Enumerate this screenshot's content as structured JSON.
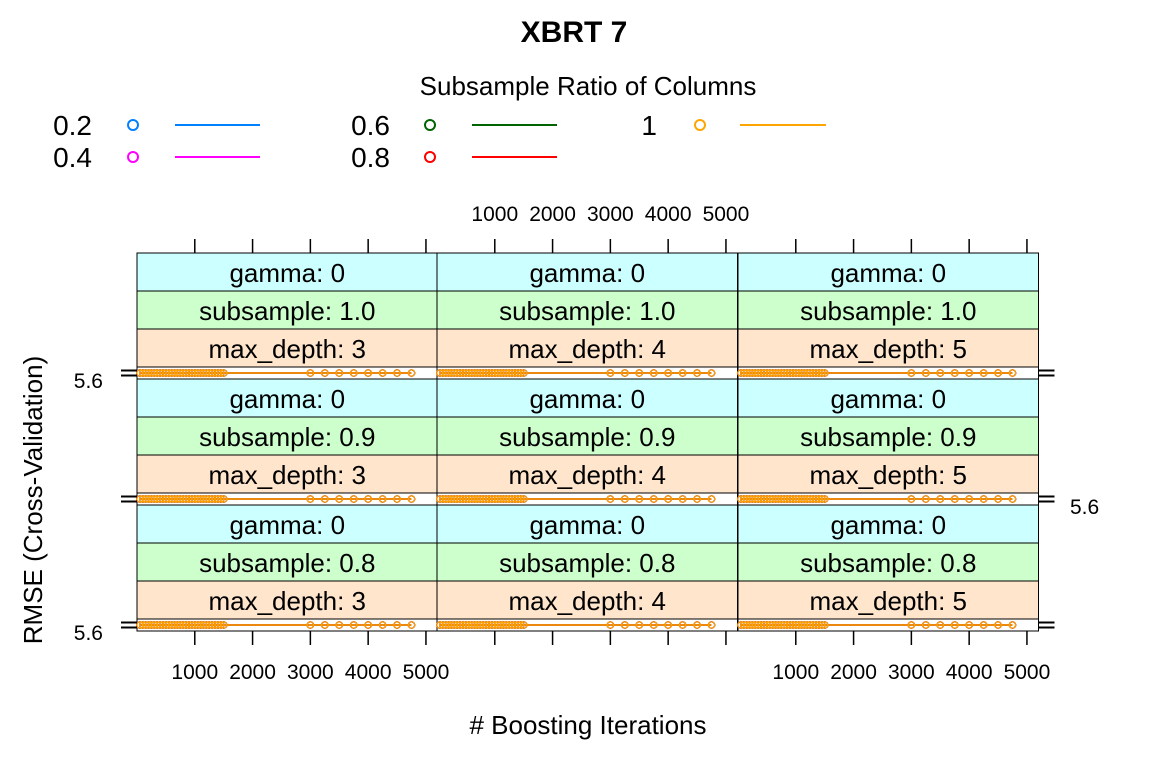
{
  "chart_data": {
    "type": "line",
    "title": "XBRT 7",
    "xlabel": "# Boosting Iterations",
    "ylabel": "RMSE (Cross-Validation)",
    "legend": {
      "title": "Subsample Ratio of Columns",
      "placement": "top",
      "entries": [
        {
          "label": "0.2",
          "color": "#0080ff"
        },
        {
          "label": "0.4",
          "color": "#ff00ff"
        },
        {
          "label": "0.6",
          "color": "#006400"
        },
        {
          "label": "0.8",
          "color": "#ff0000"
        },
        {
          "label": "1",
          "color": "#ffa500"
        }
      ]
    },
    "strip_colors": {
      "gamma": "#ccffff",
      "subsample": "#ccffcc",
      "max_depth": "#ffe5cc"
    },
    "x_ticks": [
      "1000",
      "2000",
      "3000",
      "4000",
      "5000"
    ],
    "x_tick_values": [
      1000,
      2000,
      3000,
      4000,
      5000
    ],
    "xlim": [
      0,
      5200
    ],
    "ylim": [
      5.599,
      5.601
    ],
    "y_tick_label": "5.6",
    "y_tick_value": 5.6,
    "x": [
      50,
      100,
      150,
      200,
      250,
      300,
      350,
      400,
      450,
      500,
      550,
      600,
      650,
      700,
      750,
      800,
      850,
      900,
      950,
      1000,
      1050,
      1100,
      1150,
      1200,
      1250,
      1300,
      1350,
      1400,
      1450,
      1500,
      3000,
      3250,
      3500,
      3750,
      4000,
      4250,
      4500,
      4750
    ],
    "series_values": [
      5.6,
      5.6,
      5.6,
      5.6,
      5.6
    ],
    "panels": [
      {
        "gamma": "gamma: 0",
        "subsample": "subsample: 1.0",
        "max_depth": "max_depth: 3"
      },
      {
        "gamma": "gamma: 0",
        "subsample": "subsample: 1.0",
        "max_depth": "max_depth: 4"
      },
      {
        "gamma": "gamma: 0",
        "subsample": "subsample: 1.0",
        "max_depth": "max_depth: 5"
      },
      {
        "gamma": "gamma: 0",
        "subsample": "subsample: 0.9",
        "max_depth": "max_depth: 3"
      },
      {
        "gamma": "gamma: 0",
        "subsample": "subsample: 0.9",
        "max_depth": "max_depth: 4"
      },
      {
        "gamma": "gamma: 0",
        "subsample": "subsample: 0.9",
        "max_depth": "max_depth: 5"
      },
      {
        "gamma": "gamma: 0",
        "subsample": "subsample: 0.8",
        "max_depth": "max_depth: 3"
      },
      {
        "gamma": "gamma: 0",
        "subsample": "subsample: 0.8",
        "max_depth": "max_depth: 4"
      },
      {
        "gamma": "gamma: 0",
        "subsample": "subsample: 0.8",
        "max_depth": "max_depth: 5"
      }
    ]
  }
}
